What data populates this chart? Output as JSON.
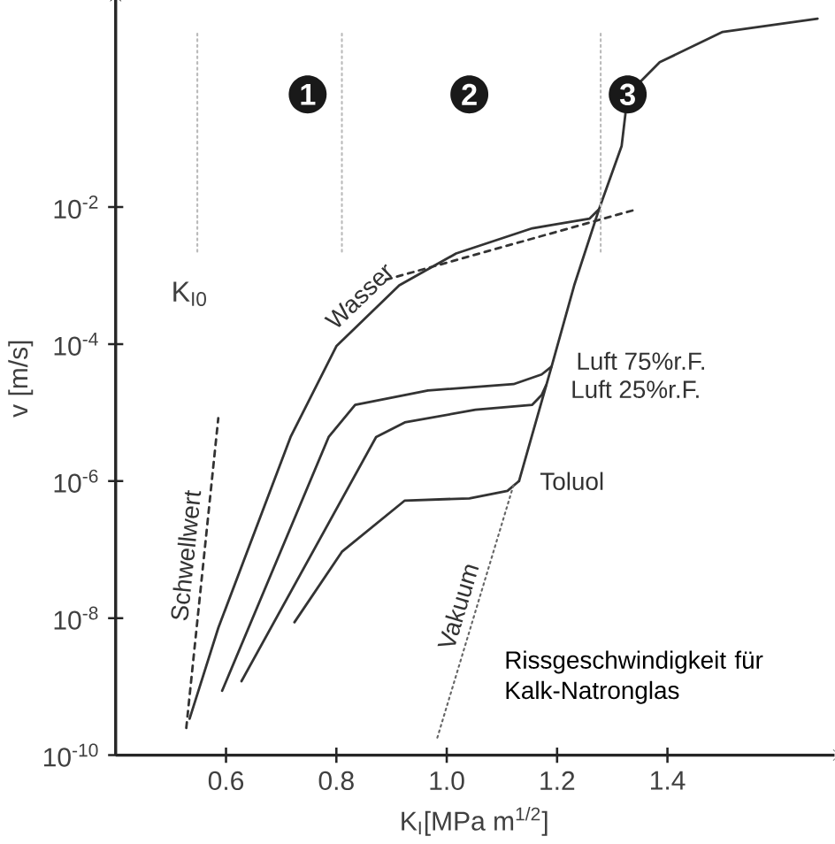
{
  "chart_data": {
    "type": "line",
    "xlabel": "K$_{I}$[MPa m$^{1/2}$]",
    "ylabel": "v [m/s]",
    "log": "y",
    "marker": "none",
    "xlim": [
      0.4,
      1.7
    ],
    "ylim": [
      1e-10,
      10
    ],
    "xticks": [
      0.6,
      0.8,
      {
        "value": 1.0,
        "label": "1.0"
      },
      1.2,
      1.4
    ],
    "yticks": [
      {
        "value": 1e-10,
        "label": "10$^{-10}$"
      },
      {
        "value": 1e-08,
        "label": "10$^{-8}$"
      },
      {
        "value": 1e-06,
        "label": "10$^{-6}$"
      },
      {
        "value": 0.0001,
        "label": "10$^{-4}$"
      },
      {
        "value": 0.01,
        "label": "10$^{-2}$"
      }
    ],
    "series": [
      {
        "name": "Wasser",
        "color": "#333333",
        "line_style": "solid",
        "x": [
          0.534,
          0.586,
          0.717,
          0.8,
          0.914,
          1.017,
          1.155,
          1.259,
          1.276
        ],
        "values": [
          3.4e-10,
          7.2e-09,
          4.4e-06,
          9.3e-05,
          0.00072,
          0.0021,
          0.0049,
          0.0068,
          0.0093
        ]
      },
      {
        "name": "Luft 75%r.F.",
        "color": "#333333",
        "line_style": "solid",
        "x": [
          0.593,
          0.786,
          0.834,
          0.966,
          1.121,
          1.172,
          1.19
        ],
        "values": [
          8.7e-10,
          4.4e-06,
          1.3e-05,
          2.1e-05,
          2.6e-05,
          3.6e-05,
          4.7e-05
        ]
      },
      {
        "name": "Luft 25%r.F.",
        "color": "#333333",
        "line_style": "solid",
        "x": [
          0.628,
          0.872,
          0.924,
          1.052,
          1.155,
          1.172,
          1.18
        ],
        "values": [
          1.2e-09,
          4.4e-06,
          7.2e-06,
          1.1e-05,
          1.3e-05,
          1.8e-05,
          2.5e-05
        ]
      },
      {
        "name": "Toluol",
        "color": "#333333",
        "line_style": "solid",
        "x": [
          0.724,
          0.81,
          0.924,
          1.041,
          1.11,
          1.131
        ],
        "values": [
          8.7e-09,
          9.3e-08,
          5.2e-07,
          5.6e-07,
          7.2e-07,
          1e-06
        ]
      },
      {
        "name": "Vakuum",
        "color": "#666666",
        "line_style": "dotted",
        "x": [
          0.983,
          1.121
        ],
        "values": [
          1.8e-10,
          8.7e-07
        ]
      },
      {
        "name": "Schwellwert",
        "color": "#333333",
        "line_style": "dashed",
        "x": [
          0.528,
          0.586
        ],
        "values": [
          2.5e-10,
          8.3e-06
        ]
      },
      {
        "color": "#333333",
        "line_style": "solid",
        "x": [
          1.131,
          1.19,
          1.231,
          1.276,
          1.317,
          1.328,
          1.386,
          1.5,
          1.672
        ],
        "values": [
          1e-06,
          4.7e-05,
          0.00072,
          0.0093,
          0.078,
          0.44,
          1.3,
          3.6,
          5.6
        ]
      },
      {
        "color": "#333333",
        "line_style": "dashed",
        "x": [
          0.89,
          1.345
        ],
        "values": [
          0.00087,
          0.0093
        ]
      },
      {
        "color": "#bbbbbb",
        "line_style": "dotted",
        "x": [
          0.548,
          0.548
        ],
        "values": [
          3.4,
          0.0021
        ]
      },
      {
        "color": "#bbbbbb",
        "line_style": "dotted",
        "x": [
          0.81,
          0.81
        ],
        "values": [
          3.4,
          0.0021
        ]
      },
      {
        "color": "#bbbbbb",
        "line_style": "dotted",
        "x": [
          1.279,
          1.279
        ],
        "values": [
          3.4,
          0.0021
        ]
      }
    ],
    "annotations": [
      {
        "text": "1",
        "x": 0.748,
        "y": 0.44
      },
      {
        "text": "2",
        "x": 1.041,
        "y": 0.44
      },
      {
        "text": "3",
        "x": 1.328,
        "y": 0.44
      },
      "K$_{I0}$",
      "Rissgeschwindigkeit für Kalk-Natronglas"
    ]
  }
}
